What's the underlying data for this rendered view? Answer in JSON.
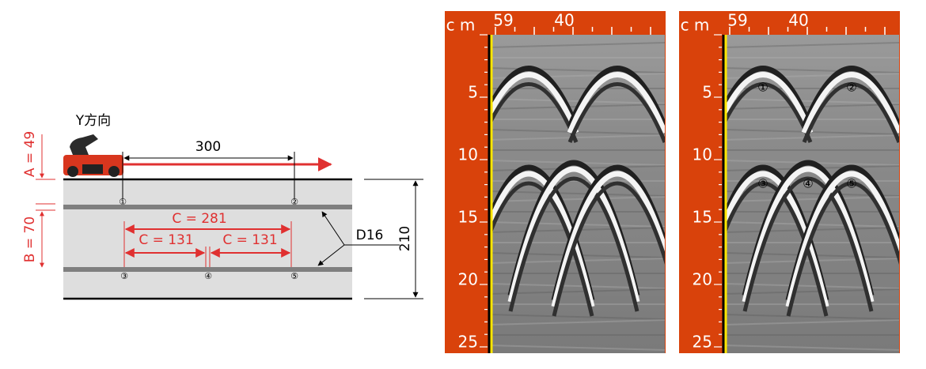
{
  "diagram": {
    "direction": "Y方向",
    "dim_a": "A = 49",
    "dim_b": "B = 70",
    "spacing": "300",
    "c_long": "C = 281",
    "c_left": "C = 131",
    "c_right": "C = 131",
    "bar": "D16",
    "depth": "210",
    "markers": [
      "①",
      "②",
      "③",
      "④",
      "⑤"
    ]
  },
  "radargrams": [
    {
      "unit": "c m",
      "top_labels": [
        "59",
        "40"
      ],
      "depth_labels": [
        "5",
        "10",
        "15",
        "20",
        "25"
      ]
    },
    {
      "unit": "c m",
      "top_labels": [
        "59",
        "40"
      ],
      "depth_labels": [
        "5",
        "10",
        "15",
        "20",
        "25"
      ],
      "markers": [
        "①",
        "②",
        "③",
        "④",
        "⑤"
      ]
    }
  ]
}
